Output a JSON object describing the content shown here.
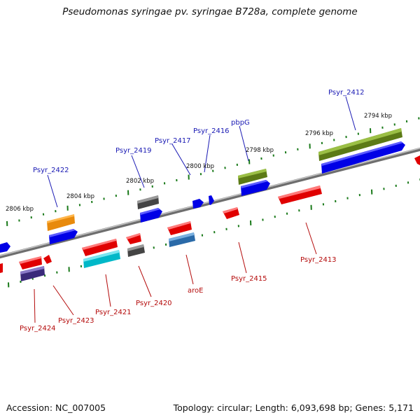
{
  "title": "Pseudomonas syringae pv. syringae B728a, complete genome",
  "accession": "Accession: NC_007005",
  "topology": "Topology: circular; Length: 6,093,698 bp; Genes: 5,171",
  "kbp_labels": [
    "2806 kbp",
    "2804 kbp",
    "2802 kbp",
    "2800 kbp",
    "2798 kbp",
    "2796 kbp",
    "2794 kbp"
  ],
  "forward_labels": [
    "Psyr_2422",
    "Psyr_2419",
    "Psyr_2417",
    "Psyr_2416",
    "pbpG",
    "Psyr_2412"
  ],
  "reverse_labels": [
    "Psyr_2424",
    "Psyr_2423",
    "Psyr_2421",
    "Psyr_2420",
    "aroE",
    "Psyr_2415",
    "Psyr_2413"
  ],
  "colors": {
    "forward_label": "#1a1ab4",
    "reverse_label": "#b40a0a",
    "tick": "#1a7a1a",
    "backbone": "#888888"
  }
}
